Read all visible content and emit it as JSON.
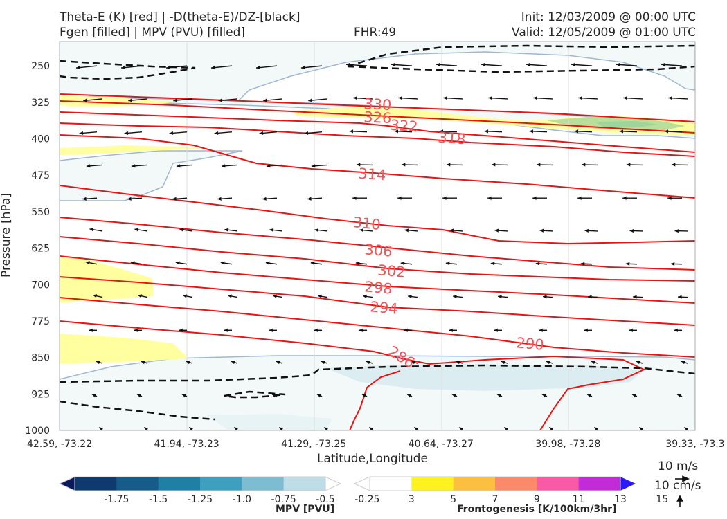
{
  "header": {
    "line1_left": "Theta-E (K) [red] | -D(theta-E)/DZ-[black]",
    "line2_left": "Fgen [filled] | MPV (PVU) [filled]",
    "fhr": "FHR:49",
    "init": "Init: 12/03/2009 @ 00:00 UTC",
    "valid": "Valid: 12/05/2009 @ 01:00 UTC"
  },
  "axes": {
    "ylabel": "Pressure [hPa]",
    "xlabel": "Latitude,Longitude"
  },
  "colors": {
    "theta_e": "#ee1111",
    "theta_e_label": "#f0555a",
    "mpv_light": "#f3f9f9",
    "mpv_mid": "#dcedf1",
    "fgen_yellow": "#ffffa0",
    "fgen_green": "#b9df9a",
    "background": "#ffffff",
    "gridline": "#cccccc"
  },
  "chart_data": {
    "type": "cross-section",
    "y_ticks": [
      "250",
      "325",
      "400",
      "475",
      "550",
      "625",
      "700",
      "775",
      "850",
      "925",
      "1000"
    ],
    "y_range": [
      200,
      1000
    ],
    "x_ticks": [
      "42.59, -73.22",
      "41.94, -73.23",
      "41.29, -73.25",
      "40.64, -73.27",
      "39.98, -73.28",
      "39.33, -73.3"
    ],
    "theta_e_contour_labels": [
      "330",
      "326",
      "322",
      "318",
      "314",
      "310",
      "306",
      "302",
      "298",
      "294",
      "290",
      "286"
    ],
    "mpv_colorbar": {
      "title": "MPV [PVU]",
      "tick_labels": [
        "-1.75",
        "-1.5",
        "-1.25",
        "-1.0",
        "-0.75",
        "-0.5",
        "-0.25"
      ],
      "colors": [
        "#0a1a5c",
        "#0f3a6e",
        "#175b8a",
        "#1f7fa4",
        "#3f9fbf",
        "#7ebcd2",
        "#bfdde6",
        "#ffffff"
      ]
    },
    "fgen_colorbar": {
      "title": "Frontogenesis [K/100km/3hr]",
      "tick_labels": [
        "3",
        "5",
        "7",
        "9",
        "11",
        "13",
        "15"
      ],
      "colors": [
        "#ffffff",
        "#fff21e",
        "#fdbf3f",
        "#fb8a6a",
        "#f95aa5",
        "#c42bd8",
        "#7a1cf0",
        "#2a1af5"
      ]
    },
    "wind_scale": {
      "horizontal": "10 m/s",
      "vertical": "10 cm/s"
    }
  }
}
